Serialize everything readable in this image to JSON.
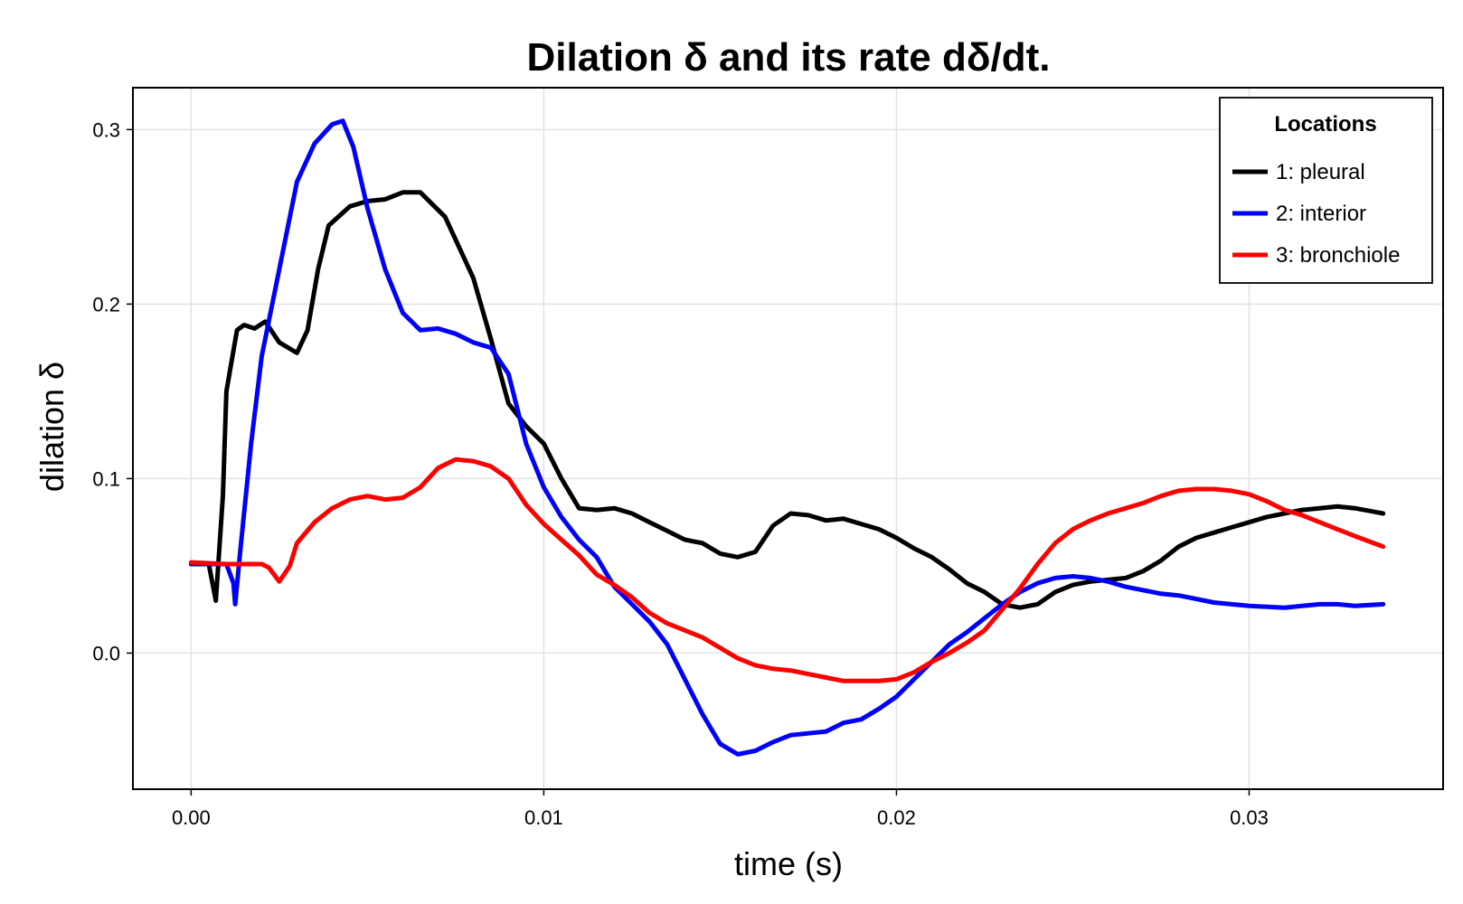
{
  "chart_data": {
    "type": "line",
    "title": "Dilation δ and its rate dδ/dt.",
    "xlabel": "time (s)",
    "ylabel": "dilation δ",
    "xlim": [
      -0.00165,
      0.0355
    ],
    "ylim": [
      -0.078,
      0.324
    ],
    "xticks": [
      0.0,
      0.01,
      0.02,
      0.03
    ],
    "xtick_labels": [
      "0.00",
      "0.01",
      "0.02",
      "0.03"
    ],
    "yticks": [
      0.0,
      0.1,
      0.2,
      0.3
    ],
    "ytick_labels": [
      "0.0",
      "0.1",
      "0.2",
      "0.3"
    ],
    "grid": true,
    "legend": {
      "title": "Locations",
      "position": "top-right"
    },
    "series": [
      {
        "name": "1: pleural",
        "color": "#000000",
        "points": [
          [
            0.0,
            0.051
          ],
          [
            0.0005,
            0.051
          ],
          [
            0.0007,
            0.03
          ],
          [
            0.0009,
            0.09
          ],
          [
            0.001,
            0.15
          ],
          [
            0.0013,
            0.185
          ],
          [
            0.0015,
            0.188
          ],
          [
            0.0018,
            0.186
          ],
          [
            0.0021,
            0.19
          ],
          [
            0.0025,
            0.178
          ],
          [
            0.003,
            0.172
          ],
          [
            0.0033,
            0.185
          ],
          [
            0.0036,
            0.22
          ],
          [
            0.0039,
            0.245
          ],
          [
            0.0045,
            0.256
          ],
          [
            0.005,
            0.259
          ],
          [
            0.0055,
            0.26
          ],
          [
            0.006,
            0.264
          ],
          [
            0.0065,
            0.264
          ],
          [
            0.0072,
            0.25
          ],
          [
            0.008,
            0.215
          ],
          [
            0.0085,
            0.18
          ],
          [
            0.009,
            0.143
          ],
          [
            0.0095,
            0.13
          ],
          [
            0.01,
            0.12
          ],
          [
            0.0105,
            0.1
          ],
          [
            0.011,
            0.083
          ],
          [
            0.0115,
            0.082
          ],
          [
            0.012,
            0.083
          ],
          [
            0.0125,
            0.08
          ],
          [
            0.013,
            0.075
          ],
          [
            0.0135,
            0.07
          ],
          [
            0.014,
            0.065
          ],
          [
            0.0145,
            0.063
          ],
          [
            0.015,
            0.057
          ],
          [
            0.0155,
            0.055
          ],
          [
            0.016,
            0.058
          ],
          [
            0.0165,
            0.073
          ],
          [
            0.017,
            0.08
          ],
          [
            0.0175,
            0.079
          ],
          [
            0.018,
            0.076
          ],
          [
            0.0185,
            0.077
          ],
          [
            0.019,
            0.074
          ],
          [
            0.0195,
            0.071
          ],
          [
            0.02,
            0.066
          ],
          [
            0.0205,
            0.06
          ],
          [
            0.021,
            0.055
          ],
          [
            0.0215,
            0.048
          ],
          [
            0.022,
            0.04
          ],
          [
            0.0225,
            0.035
          ],
          [
            0.023,
            0.028
          ],
          [
            0.0235,
            0.026
          ],
          [
            0.024,
            0.028
          ],
          [
            0.0245,
            0.035
          ],
          [
            0.025,
            0.039
          ],
          [
            0.0255,
            0.041
          ],
          [
            0.026,
            0.042
          ],
          [
            0.0265,
            0.043
          ],
          [
            0.027,
            0.047
          ],
          [
            0.0275,
            0.053
          ],
          [
            0.028,
            0.061
          ],
          [
            0.0285,
            0.066
          ],
          [
            0.029,
            0.069
          ],
          [
            0.0295,
            0.072
          ],
          [
            0.03,
            0.075
          ],
          [
            0.0305,
            0.078
          ],
          [
            0.031,
            0.08
          ],
          [
            0.0315,
            0.082
          ],
          [
            0.032,
            0.083
          ],
          [
            0.0325,
            0.084
          ],
          [
            0.033,
            0.083
          ],
          [
            0.0338,
            0.08
          ]
        ]
      },
      {
        "name": "2: interior",
        "color": "#0000ff",
        "points": [
          [
            0.0,
            0.051
          ],
          [
            0.001,
            0.051
          ],
          [
            0.0012,
            0.04
          ],
          [
            0.00125,
            0.028
          ],
          [
            0.0014,
            0.06
          ],
          [
            0.0017,
            0.12
          ],
          [
            0.002,
            0.17
          ],
          [
            0.0025,
            0.22
          ],
          [
            0.003,
            0.27
          ],
          [
            0.0035,
            0.292
          ],
          [
            0.004,
            0.303
          ],
          [
            0.0043,
            0.305
          ],
          [
            0.0046,
            0.29
          ],
          [
            0.005,
            0.255
          ],
          [
            0.0055,
            0.22
          ],
          [
            0.006,
            0.195
          ],
          [
            0.0065,
            0.185
          ],
          [
            0.007,
            0.186
          ],
          [
            0.0075,
            0.183
          ],
          [
            0.008,
            0.178
          ],
          [
            0.0085,
            0.175
          ],
          [
            0.009,
            0.16
          ],
          [
            0.0095,
            0.12
          ],
          [
            0.01,
            0.095
          ],
          [
            0.0105,
            0.078
          ],
          [
            0.011,
            0.065
          ],
          [
            0.0115,
            0.055
          ],
          [
            0.012,
            0.038
          ],
          [
            0.0125,
            0.028
          ],
          [
            0.013,
            0.018
          ],
          [
            0.0135,
            0.005
          ],
          [
            0.014,
            -0.015
          ],
          [
            0.0145,
            -0.035
          ],
          [
            0.015,
            -0.052
          ],
          [
            0.0155,
            -0.058
          ],
          [
            0.016,
            -0.056
          ],
          [
            0.0165,
            -0.051
          ],
          [
            0.017,
            -0.047
          ],
          [
            0.0175,
            -0.046
          ],
          [
            0.018,
            -0.045
          ],
          [
            0.0185,
            -0.04
          ],
          [
            0.019,
            -0.038
          ],
          [
            0.0195,
            -0.032
          ],
          [
            0.02,
            -0.025
          ],
          [
            0.0205,
            -0.015
          ],
          [
            0.021,
            -0.005
          ],
          [
            0.0215,
            0.005
          ],
          [
            0.022,
            0.012
          ],
          [
            0.0225,
            0.02
          ],
          [
            0.023,
            0.028
          ],
          [
            0.0235,
            0.035
          ],
          [
            0.024,
            0.04
          ],
          [
            0.0245,
            0.043
          ],
          [
            0.025,
            0.044
          ],
          [
            0.0255,
            0.043
          ],
          [
            0.026,
            0.041
          ],
          [
            0.0265,
            0.038
          ],
          [
            0.027,
            0.036
          ],
          [
            0.0275,
            0.034
          ],
          [
            0.028,
            0.033
          ],
          [
            0.0285,
            0.031
          ],
          [
            0.029,
            0.029
          ],
          [
            0.0295,
            0.028
          ],
          [
            0.03,
            0.027
          ],
          [
            0.031,
            0.026
          ],
          [
            0.0315,
            0.027
          ],
          [
            0.032,
            0.028
          ],
          [
            0.0325,
            0.028
          ],
          [
            0.033,
            0.027
          ],
          [
            0.0338,
            0.028
          ]
        ]
      },
      {
        "name": "3: bronchiole",
        "color": "#ff0000",
        "points": [
          [
            0.0,
            0.052
          ],
          [
            0.001,
            0.051
          ],
          [
            0.002,
            0.051
          ],
          [
            0.0022,
            0.049
          ],
          [
            0.0025,
            0.041
          ],
          [
            0.0028,
            0.05
          ],
          [
            0.003,
            0.063
          ],
          [
            0.0035,
            0.075
          ],
          [
            0.004,
            0.083
          ],
          [
            0.0045,
            0.088
          ],
          [
            0.005,
            0.09
          ],
          [
            0.0055,
            0.088
          ],
          [
            0.006,
            0.089
          ],
          [
            0.0065,
            0.095
          ],
          [
            0.007,
            0.106
          ],
          [
            0.0075,
            0.111
          ],
          [
            0.008,
            0.11
          ],
          [
            0.0085,
            0.107
          ],
          [
            0.009,
            0.1
          ],
          [
            0.0095,
            0.085
          ],
          [
            0.01,
            0.074
          ],
          [
            0.0105,
            0.065
          ],
          [
            0.011,
            0.056
          ],
          [
            0.0115,
            0.045
          ],
          [
            0.012,
            0.039
          ],
          [
            0.0125,
            0.032
          ],
          [
            0.013,
            0.023
          ],
          [
            0.0135,
            0.017
          ],
          [
            0.014,
            0.013
          ],
          [
            0.0145,
            0.009
          ],
          [
            0.015,
            0.003
          ],
          [
            0.0155,
            -0.003
          ],
          [
            0.016,
            -0.007
          ],
          [
            0.0165,
            -0.009
          ],
          [
            0.017,
            -0.01
          ],
          [
            0.0175,
            -0.012
          ],
          [
            0.018,
            -0.014
          ],
          [
            0.0185,
            -0.016
          ],
          [
            0.019,
            -0.016
          ],
          [
            0.0195,
            -0.016
          ],
          [
            0.02,
            -0.015
          ],
          [
            0.0205,
            -0.011
          ],
          [
            0.021,
            -0.005
          ],
          [
            0.0215,
            0.0
          ],
          [
            0.022,
            0.006
          ],
          [
            0.0225,
            0.013
          ],
          [
            0.023,
            0.025
          ],
          [
            0.0235,
            0.037
          ],
          [
            0.024,
            0.051
          ],
          [
            0.0245,
            0.063
          ],
          [
            0.025,
            0.071
          ],
          [
            0.0255,
            0.076
          ],
          [
            0.026,
            0.08
          ],
          [
            0.0265,
            0.083
          ],
          [
            0.027,
            0.086
          ],
          [
            0.0275,
            0.09
          ],
          [
            0.028,
            0.093
          ],
          [
            0.0285,
            0.094
          ],
          [
            0.029,
            0.094
          ],
          [
            0.0295,
            0.093
          ],
          [
            0.03,
            0.091
          ],
          [
            0.0305,
            0.087
          ],
          [
            0.031,
            0.082
          ],
          [
            0.0315,
            0.079
          ],
          [
            0.032,
            0.075
          ],
          [
            0.0325,
            0.071
          ],
          [
            0.033,
            0.067
          ],
          [
            0.0338,
            0.061
          ]
        ]
      }
    ]
  }
}
